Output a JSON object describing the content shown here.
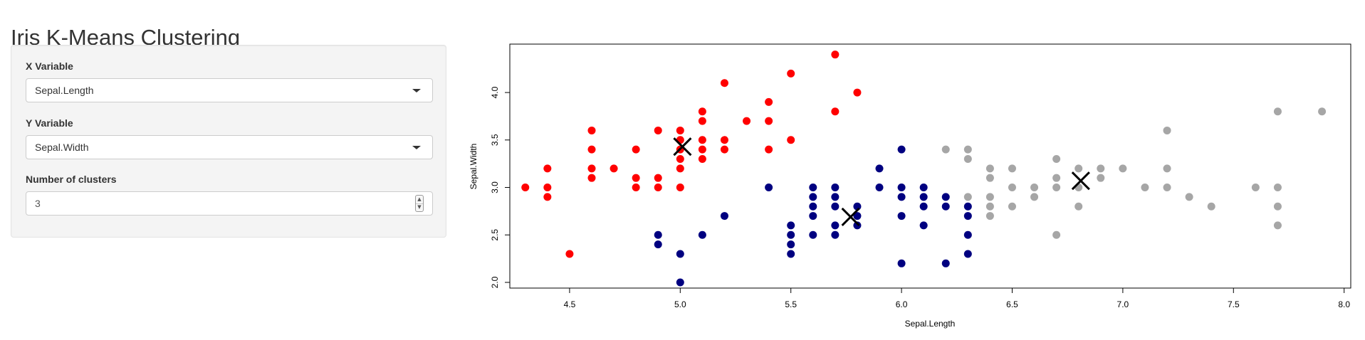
{
  "app": {
    "title": "Iris K-Means Clustering"
  },
  "sidebar": {
    "x_variable": {
      "label": "X Variable",
      "selected": "Sepal.Length"
    },
    "y_variable": {
      "label": "Y Variable",
      "selected": "Sepal.Width"
    },
    "clusters": {
      "label": "Number of clusters",
      "value": "3"
    }
  },
  "icons": {
    "dropdown": "chevron-down-icon",
    "spinner": "spin-arrows-icon",
    "centroid": "cross-x-icon"
  },
  "chart_data": {
    "type": "scatter",
    "xlabel": "Sepal.Length",
    "ylabel": "Sepal.Width",
    "xlim": [
      4.23,
      8.03
    ],
    "ylim": [
      1.94,
      4.51
    ],
    "xticks": [
      "4.5",
      "5.0",
      "5.5",
      "6.0",
      "6.5",
      "7.0",
      "7.5",
      "8.0"
    ],
    "yticks": [
      "2.0",
      "2.5",
      "3.0",
      "3.5",
      "4.0"
    ],
    "grid": false,
    "legend": "none",
    "cluster_colors": [
      "#ff0000",
      "#000080",
      "#a6a6a6"
    ],
    "series": [
      {
        "color": "#ff0000",
        "points": [
          [
            4.3,
            3.0
          ],
          [
            4.4,
            3.2
          ],
          [
            4.4,
            3.0
          ],
          [
            4.4,
            2.9
          ],
          [
            4.5,
            2.3
          ],
          [
            4.6,
            3.6
          ],
          [
            4.6,
            3.4
          ],
          [
            4.6,
            3.2
          ],
          [
            4.6,
            3.1
          ],
          [
            4.7,
            3.2
          ],
          [
            4.8,
            3.4
          ],
          [
            4.8,
            3.1
          ],
          [
            4.8,
            3.0
          ],
          [
            4.9,
            3.6
          ],
          [
            4.9,
            3.1
          ],
          [
            4.9,
            3.0
          ],
          [
            5.0,
            3.6
          ],
          [
            5.0,
            3.5
          ],
          [
            5.0,
            3.4
          ],
          [
            5.0,
            3.3
          ],
          [
            5.0,
            3.2
          ],
          [
            5.0,
            3.0
          ],
          [
            5.1,
            3.8
          ],
          [
            5.1,
            3.7
          ],
          [
            5.1,
            3.5
          ],
          [
            5.1,
            3.4
          ],
          [
            5.1,
            3.3
          ],
          [
            5.2,
            4.1
          ],
          [
            5.2,
            3.5
          ],
          [
            5.2,
            3.4
          ],
          [
            5.3,
            3.7
          ],
          [
            5.4,
            3.9
          ],
          [
            5.4,
            3.7
          ],
          [
            5.4,
            3.4
          ],
          [
            5.5,
            4.2
          ],
          [
            5.5,
            3.5
          ],
          [
            5.7,
            4.4
          ],
          [
            5.7,
            3.8
          ],
          [
            5.8,
            4.0
          ]
        ]
      },
      {
        "color": "#000080",
        "points": [
          [
            4.9,
            2.5
          ],
          [
            4.9,
            2.4
          ],
          [
            5.0,
            2.3
          ],
          [
            5.0,
            2.0
          ],
          [
            5.1,
            2.5
          ],
          [
            5.2,
            2.7
          ],
          [
            5.4,
            3.0
          ],
          [
            5.5,
            2.6
          ],
          [
            5.5,
            2.5
          ],
          [
            5.5,
            2.4
          ],
          [
            5.5,
            2.3
          ],
          [
            5.6,
            3.0
          ],
          [
            5.6,
            2.9
          ],
          [
            5.6,
            2.8
          ],
          [
            5.6,
            2.7
          ],
          [
            5.6,
            2.5
          ],
          [
            5.7,
            3.0
          ],
          [
            5.7,
            2.9
          ],
          [
            5.7,
            2.8
          ],
          [
            5.7,
            2.6
          ],
          [
            5.7,
            2.5
          ],
          [
            5.8,
            2.8
          ],
          [
            5.8,
            2.7
          ],
          [
            5.8,
            2.6
          ],
          [
            5.9,
            3.2
          ],
          [
            5.9,
            3.0
          ],
          [
            6.0,
            3.4
          ],
          [
            6.0,
            3.0
          ],
          [
            6.0,
            2.9
          ],
          [
            6.0,
            2.7
          ],
          [
            6.0,
            2.2
          ],
          [
            6.1,
            3.0
          ],
          [
            6.1,
            2.9
          ],
          [
            6.1,
            2.8
          ],
          [
            6.1,
            2.6
          ],
          [
            6.2,
            2.9
          ],
          [
            6.2,
            2.8
          ],
          [
            6.2,
            2.2
          ],
          [
            6.3,
            2.8
          ],
          [
            6.3,
            2.7
          ],
          [
            6.3,
            2.5
          ],
          [
            6.3,
            2.3
          ]
        ]
      },
      {
        "color": "#a6a6a6",
        "points": [
          [
            6.2,
            3.4
          ],
          [
            6.3,
            3.4
          ],
          [
            6.3,
            3.3
          ],
          [
            6.3,
            2.9
          ],
          [
            6.4,
            3.2
          ],
          [
            6.4,
            3.1
          ],
          [
            6.4,
            2.9
          ],
          [
            6.4,
            2.8
          ],
          [
            6.4,
            2.7
          ],
          [
            6.5,
            3.2
          ],
          [
            6.5,
            3.0
          ],
          [
            6.5,
            2.8
          ],
          [
            6.6,
            3.0
          ],
          [
            6.6,
            2.9
          ],
          [
            6.7,
            3.3
          ],
          [
            6.7,
            3.1
          ],
          [
            6.7,
            3.0
          ],
          [
            6.7,
            2.5
          ],
          [
            6.8,
            3.2
          ],
          [
            6.8,
            3.0
          ],
          [
            6.8,
            2.8
          ],
          [
            6.9,
            3.2
          ],
          [
            6.9,
            3.1
          ],
          [
            7.0,
            3.2
          ],
          [
            7.1,
            3.0
          ],
          [
            7.2,
            3.6
          ],
          [
            7.2,
            3.2
          ],
          [
            7.2,
            3.0
          ],
          [
            7.3,
            2.9
          ],
          [
            7.4,
            2.8
          ],
          [
            7.6,
            3.0
          ],
          [
            7.7,
            3.8
          ],
          [
            7.7,
            3.0
          ],
          [
            7.7,
            2.8
          ],
          [
            7.7,
            2.6
          ],
          [
            7.9,
            3.8
          ]
        ]
      }
    ],
    "centroids": [
      [
        5.01,
        3.43
      ],
      [
        5.77,
        2.69
      ],
      [
        6.81,
        3.07
      ]
    ]
  }
}
